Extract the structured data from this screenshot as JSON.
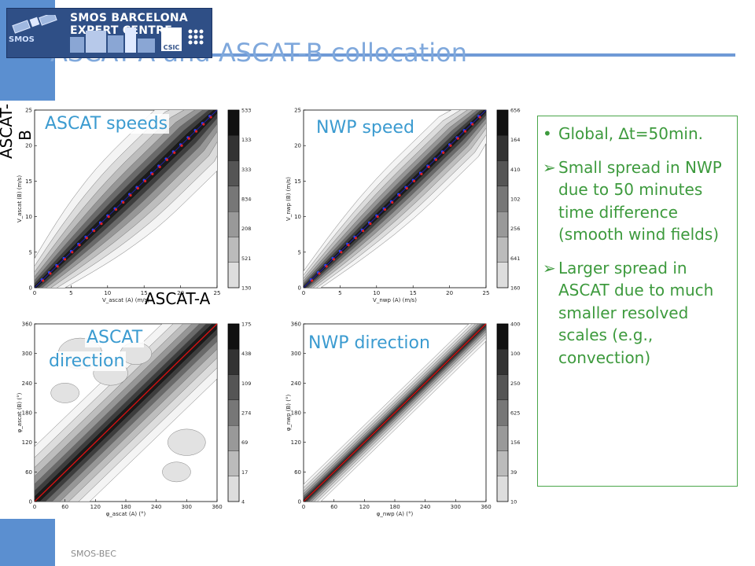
{
  "header": {
    "logo_text": "SMOS BARCELONA EXPERT CENTRE",
    "logo_smos": "SMOS",
    "logo_csic": "CSIC",
    "title": "ASCAT-A and ASCAT-B collocation"
  },
  "axis_labels": {
    "left": "ASCAT-B",
    "bottom": "ASCAT-A"
  },
  "panels": {
    "speed_ascat": {
      "label": "ASCAT speeds",
      "xlabel": "V_ascat (A) (m/s)",
      "ylabel": "V_ascat (B) (m/s)",
      "colorbar": [
        "533764",
        "133441",
        "33360",
        "8340",
        "2085",
        "521",
        "130"
      ]
    },
    "speed_nwp": {
      "label": "NWP speed",
      "xlabel": "V_nwp (A) (m/s)",
      "ylabel": "V_nwp (B) (m/s)",
      "colorbar": [
        "656660",
        "164165",
        "41041",
        "10260",
        "2565",
        "641",
        "160"
      ]
    },
    "dir_ascat": {
      "label_1": "ASCAT",
      "label_2": "direction",
      "xlabel": "φ_ascat (A) (°)",
      "ylabel": "φ_ascat (B) (°)",
      "colorbar": [
        "17545",
        "4386",
        "1097",
        "274",
        "69",
        "17",
        "4"
      ]
    },
    "dir_nwp": {
      "label": "NWP direction",
      "xlabel": "φ_nwp (A) (°)",
      "ylabel": "φ_nwp (B) (°)",
      "colorbar": [
        "40006",
        "10002",
        "2500",
        "625",
        "156",
        "39",
        "10"
      ]
    }
  },
  "chart_data": [
    {
      "type": "heatmap",
      "title": "ASCAT speeds",
      "x": [
        0,
        5,
        10,
        15,
        20,
        25
      ],
      "y": [
        0,
        5,
        10,
        15,
        20,
        25
      ],
      "xlim": [
        0,
        25
      ],
      "ylim": [
        0,
        25
      ]
    },
    {
      "type": "heatmap",
      "title": "NWP speed",
      "x": [
        0,
        5,
        10,
        15,
        20,
        25
      ],
      "y": [
        0,
        5,
        10,
        15,
        20,
        25
      ],
      "xlim": [
        0,
        25
      ],
      "ylim": [
        0,
        25
      ]
    },
    {
      "type": "heatmap",
      "title": "ASCAT direction",
      "x": [
        0,
        60,
        120,
        180,
        240,
        300,
        360
      ],
      "y": [
        0,
        60,
        120,
        180,
        240,
        300,
        360
      ],
      "xlim": [
        0,
        360
      ],
      "ylim": [
        0,
        360
      ]
    },
    {
      "type": "heatmap",
      "title": "NWP direction",
      "x": [
        0,
        60,
        120,
        180,
        240,
        300,
        360
      ],
      "y": [
        0,
        60,
        120,
        180,
        240,
        300,
        360
      ],
      "xlim": [
        0,
        360
      ],
      "ylim": [
        0,
        360
      ]
    }
  ],
  "notes": {
    "bullet": "Global, ∆t=50min.",
    "items": [
      "Small spread in NWP due to 50 minutes time difference (smooth wind fields)",
      "Larger spread in ASCAT due to much smaller resolved scales (e.g., convection)"
    ]
  },
  "footer": "SMOS-BEC"
}
